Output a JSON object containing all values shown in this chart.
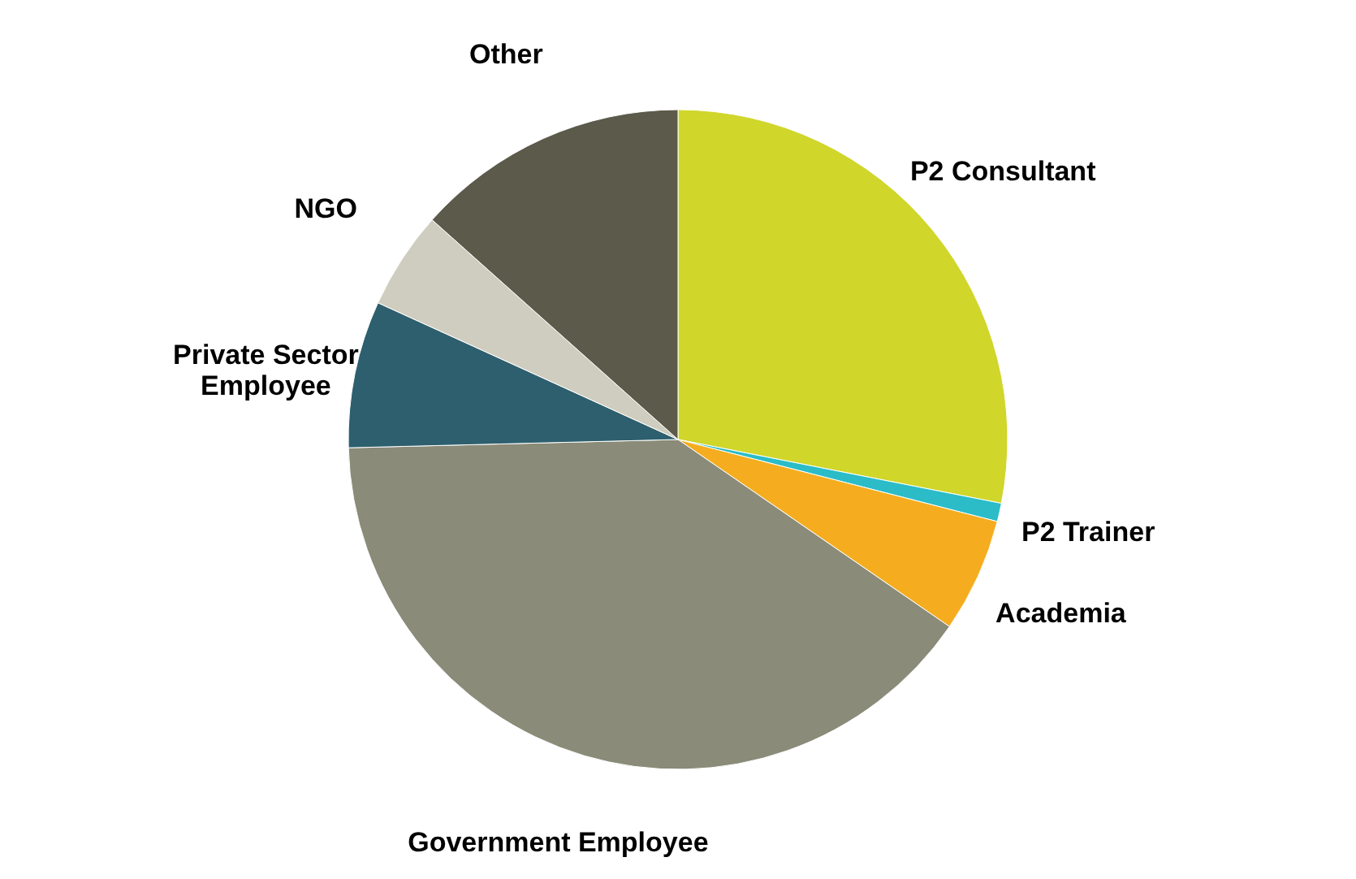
{
  "chart_data": {
    "type": "pie",
    "categories": [
      "P2 Consultant",
      "P2 Trainer",
      "Academia",
      "Government Employee",
      "Private Sector\nEmployee",
      "NGO",
      "Other"
    ],
    "values": [
      28.1,
      0.9,
      5.6,
      40.0,
      7.2,
      4.8,
      13.4
    ],
    "colors": [
      "#d0d62a",
      "#2bbcc8",
      "#f5ad1f",
      "#8a8b78",
      "#2e5f6e",
      "#cfcdbf",
      "#5b5a4b"
    ],
    "legend": false
  }
}
